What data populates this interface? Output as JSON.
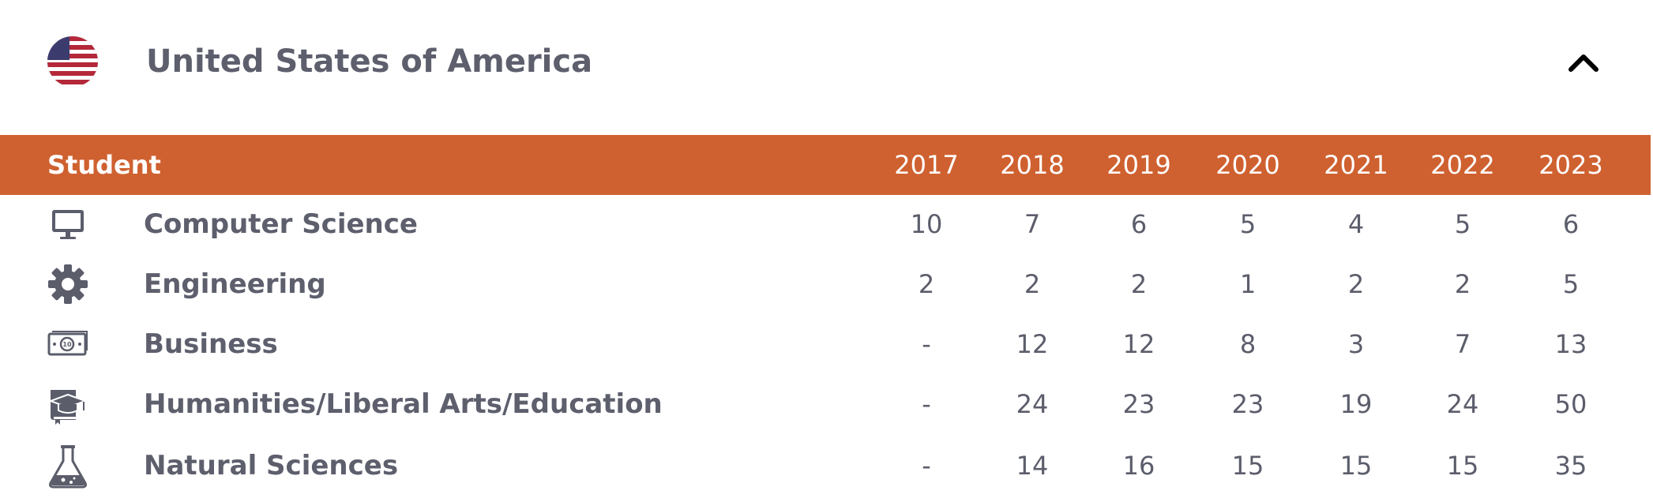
{
  "header": {
    "country": "United States of America",
    "flag_icon": "us-flag-icon",
    "toggle_icon": "chevron-up-icon"
  },
  "table": {
    "first_column_label": "Student",
    "years": [
      "2017",
      "2018",
      "2019",
      "2020",
      "2021",
      "2022",
      "2023"
    ],
    "header_color": "#cf6130",
    "rows": [
      {
        "label": "Computer Science",
        "icon": "monitor-icon",
        "values": [
          "10",
          "7",
          "6",
          "5",
          "4",
          "5",
          "6"
        ]
      },
      {
        "label": "Engineering",
        "icon": "gear-icon",
        "values": [
          "2",
          "2",
          "2",
          "1",
          "2",
          "2",
          "5"
        ]
      },
      {
        "label": "Business",
        "icon": "money-bill-icon",
        "values": [
          "-",
          "12",
          "12",
          "8",
          "3",
          "7",
          "13"
        ]
      },
      {
        "label": "Humanities/Liberal Arts/Education",
        "icon": "graduation-book-icon",
        "values": [
          "-",
          "24",
          "23",
          "23",
          "19",
          "24",
          "50"
        ]
      },
      {
        "label": "Natural Sciences",
        "icon": "flask-icon",
        "values": [
          "-",
          "14",
          "16",
          "15",
          "15",
          "15",
          "35"
        ]
      }
    ]
  }
}
